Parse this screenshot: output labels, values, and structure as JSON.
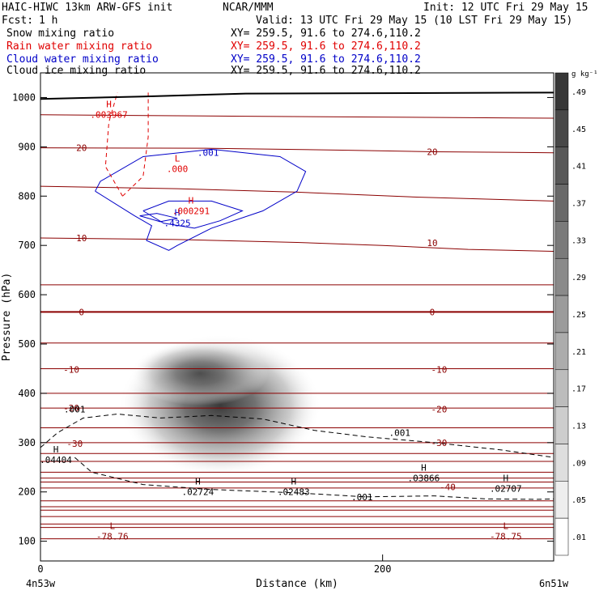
{
  "header": {
    "model": "HAIC-HIWC 13km ARW-GFS init",
    "center": "NCAR/MMM",
    "init": "Init: 12 UTC Fri 29 May 15",
    "fcst_label": "Fcst:",
    "fcst_value": "1 h",
    "valid": "Valid: 13 UTC Fri 29 May 15 (10 LST Fri 29 May 15)"
  },
  "fields": [
    {
      "name": "Snow mixing ratio",
      "xy": "XY= 259.5, 91.6 to 274.6,110.2",
      "color": "#000000"
    },
    {
      "name": "Rain water mixing ratio",
      "xy": "XY= 259.5, 91.6 to 274.6,110.2",
      "color": "#e00000"
    },
    {
      "name": "Cloud water mixing ratio",
      "xy": "XY= 259.5, 91.6 to 274.6,110.2",
      "color": "#0000c8"
    },
    {
      "name": "Cloud ice mixing ratio",
      "xy": "XY= 259.5, 91.6 to 274.6,110.2",
      "color": "#000000"
    }
  ],
  "chart_data": {
    "type": "heatmap",
    "xlabel": "Distance (km)",
    "ylabel": "Pressure (hPa)",
    "xlim": [
      0,
      300
    ],
    "ylim": [
      1050,
      60
    ],
    "x_ticks": [
      0,
      200
    ],
    "y_ticks": [
      100,
      200,
      300,
      400,
      500,
      600,
      700,
      800,
      900,
      1000
    ],
    "x_endpoints": {
      "left": "4n53w",
      "right": "6n51w"
    },
    "colorbar": {
      "unit": "g kg⁻¹",
      "ticks": [
        ".49",
        ".45",
        ".41",
        ".37",
        ".33",
        ".29",
        ".25",
        ".21",
        ".17",
        ".13",
        ".09",
        ".05",
        ".01"
      ]
    },
    "shaded_field": {
      "name": "Cloud ice mixing ratio",
      "max_center_x": 105,
      "max_center_p": 375,
      "max_value": 0.49
    },
    "temperature_contours": [
      {
        "label": "-40",
        "x": 238,
        "p": 210
      },
      {
        "label": "-30",
        "x": 20,
        "p": 298
      },
      {
        "label": "-30",
        "x": 233,
        "p": 300
      },
      {
        "label": "-20",
        "x": 18,
        "p": 370
      },
      {
        "label": "-20",
        "x": 233,
        "p": 368
      },
      {
        "label": "-10",
        "x": 18,
        "p": 448
      },
      {
        "label": "-10",
        "x": 233,
        "p": 448
      },
      {
        "label": "0",
        "x": 24,
        "p": 565
      },
      {
        "label": "0",
        "x": 229,
        "p": 565
      },
      {
        "label": "10",
        "x": 24,
        "p": 715
      },
      {
        "label": "10",
        "x": 229,
        "p": 705
      },
      {
        "label": "20",
        "x": 24,
        "p": 898
      },
      {
        "label": "20",
        "x": 229,
        "p": 890
      }
    ],
    "extrema": [
      {
        "type": "L",
        "value": "-78.76",
        "x": 42,
        "p": 115,
        "color": "#8b0000"
      },
      {
        "type": "L",
        "value": "-78.75",
        "x": 272,
        "p": 115,
        "color": "#8b0000"
      },
      {
        "type": "H",
        "value": ".04404",
        "x": 9,
        "p": 270,
        "color": "#000000"
      },
      {
        "type": "H",
        "value": ".02724",
        "x": 92,
        "p": 205,
        "color": "#000000"
      },
      {
        "type": "H",
        "value": ".02483",
        "x": 148,
        "p": 205,
        "color": "#000000"
      },
      {
        "type": "H",
        "value": ".03866",
        "x": 224,
        "p": 233,
        "color": "#000000"
      },
      {
        "type": "H",
        "value": ".02707",
        "x": 272,
        "p": 212,
        "color": "#000000"
      },
      {
        "type": "H",
        "value": ".4325",
        "x": 80,
        "p": 750,
        "color": "#0000c8"
      },
      {
        "type": "H",
        "value": ".000291",
        "x": 88,
        "p": 775,
        "color": "#e00000"
      },
      {
        "type": "L",
        "value": ".000",
        "x": 80,
        "p": 860,
        "color": "#e00000"
      },
      {
        "type": "H",
        "value": ".003967",
        "x": 40,
        "p": 970,
        "color": "#e00000"
      }
    ],
    "contour_labels": [
      {
        "label": ".001",
        "x": 188,
        "p": 190,
        "color": "#000000"
      },
      {
        "label": ".001",
        "x": 210,
        "p": 320,
        "color": "#000000"
      },
      {
        "label": ".001",
        "x": 20,
        "p": 368,
        "color": "#000000"
      },
      {
        "label": ".001",
        "x": 98,
        "p": 888,
        "color": "#0000c8"
      }
    ]
  }
}
